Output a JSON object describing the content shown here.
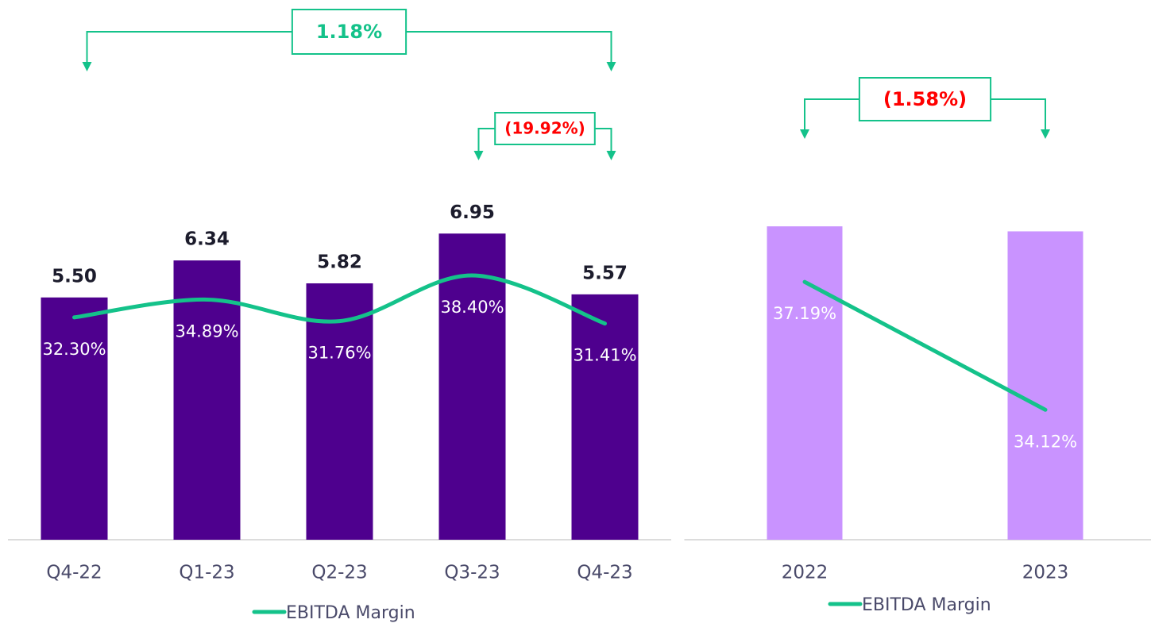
{
  "chart_data": [
    {
      "type": "bar",
      "categories": [
        "Q4-22",
        "Q1-23",
        "Q2-23",
        "Q3-23",
        "Q4-23"
      ],
      "series": [
        {
          "color": "#4e008e",
          "values": [
            5.5,
            6.34,
            5.82,
            6.95,
            5.57
          ],
          "value_labels": [
            "5.50",
            "6.34",
            "5.82",
            "6.95",
            "5.57"
          ]
        },
        {
          "name": "EBITDA Margin",
          "type": "line",
          "axis": "y2",
          "smooth": true,
          "color": "#14c28a",
          "values": [
            32.3,
            34.89,
            31.76,
            38.4,
            31.41
          ],
          "value_labels": [
            "32.30%",
            "34.89%",
            "31.76%",
            "38.40%",
            "31.41%"
          ]
        }
      ],
      "ylim": [
        0,
        10
      ],
      "y2lim": [
        0,
        64
      ],
      "annotations": [
        {
          "text": "1.18%",
          "from": "Q4-22",
          "to": "Q4-23",
          "color": "#14c28a"
        },
        {
          "text": "(19.92%)",
          "from": "Q3-23",
          "to": "Q4-23",
          "color": "#ff0000"
        }
      ]
    },
    {
      "type": "bar",
      "categories": [
        "2022",
        "2023"
      ],
      "series": [
        {
          "color": "#c993ff",
          "values": [
            25.08,
            24.68
          ]
        },
        {
          "name": "EBITDA Margin",
          "type": "line",
          "axis": "y2",
          "smooth": false,
          "color": "#14c28a",
          "values": [
            37.19,
            34.12
          ],
          "value_labels": [
            "37.19%",
            "34.12%"
          ]
        }
      ],
      "ylim": [
        0,
        35
      ],
      "y2lim": [
        31,
        41.5
      ],
      "annotations": [
        {
          "text": "(1.58%)",
          "from": "2022",
          "to": "2023",
          "color": "#ff0000"
        }
      ]
    }
  ]
}
